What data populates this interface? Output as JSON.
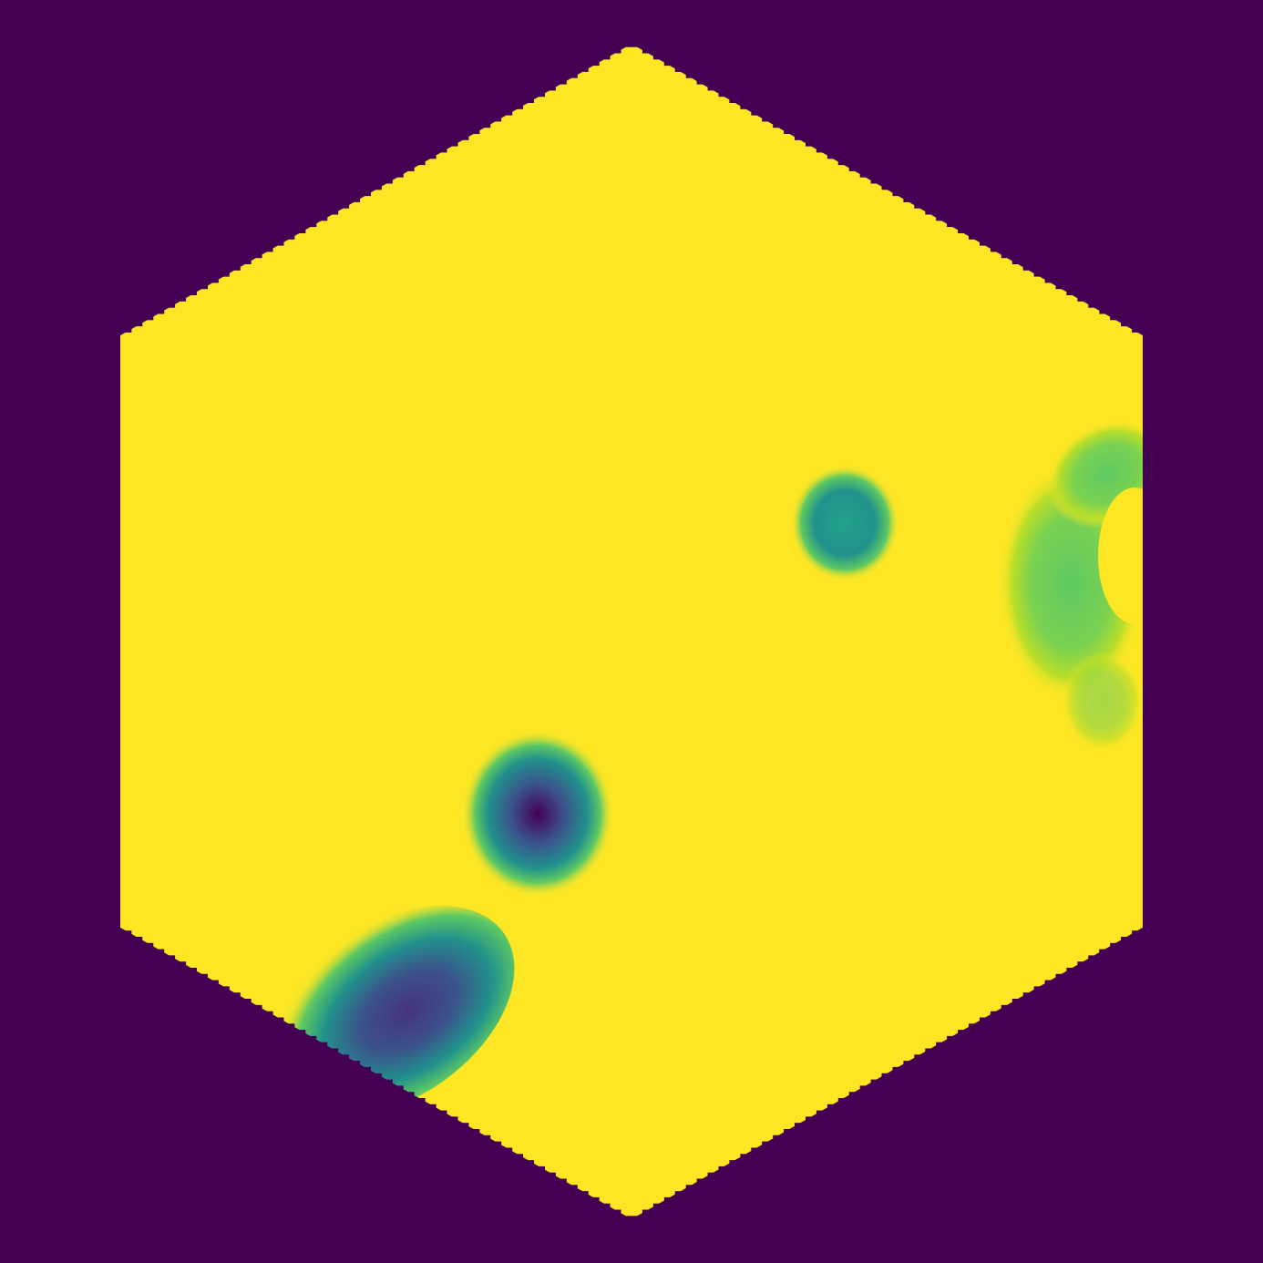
{
  "colors": {
    "background": "#440154",
    "field_high": "#fde725",
    "field_mid_high": "#b8de29",
    "field_mid": "#5ec962",
    "field_mid_low": "#21918c",
    "field_low_mid": "#3b528b",
    "field_low": "#440154"
  },
  "board": {
    "shape": "hexagon",
    "edge": "pixelated"
  },
  "spots": [
    {
      "name": "teal-spot",
      "center": [
        0.668,
        0.415
      ],
      "radius": [
        0.042,
        0.046
      ],
      "depth": 0.62,
      "color": "#21918c"
    },
    {
      "name": "dark-ring-spot",
      "center": [
        0.426,
        0.645
      ],
      "radius": [
        0.056,
        0.061
      ],
      "depth": 1.0,
      "color": "#440154"
    },
    {
      "name": "green-right-spot",
      "center": [
        0.845,
        0.47
      ],
      "radius": [
        0.055,
        0.085
      ],
      "depth": 0.45,
      "color": "#5ec962"
    },
    {
      "name": "dark-bottom-spot",
      "center": [
        0.315,
        0.815
      ],
      "radius": [
        0.09,
        0.055
      ],
      "depth": 1.0,
      "color": "#3b528b"
    }
  ]
}
